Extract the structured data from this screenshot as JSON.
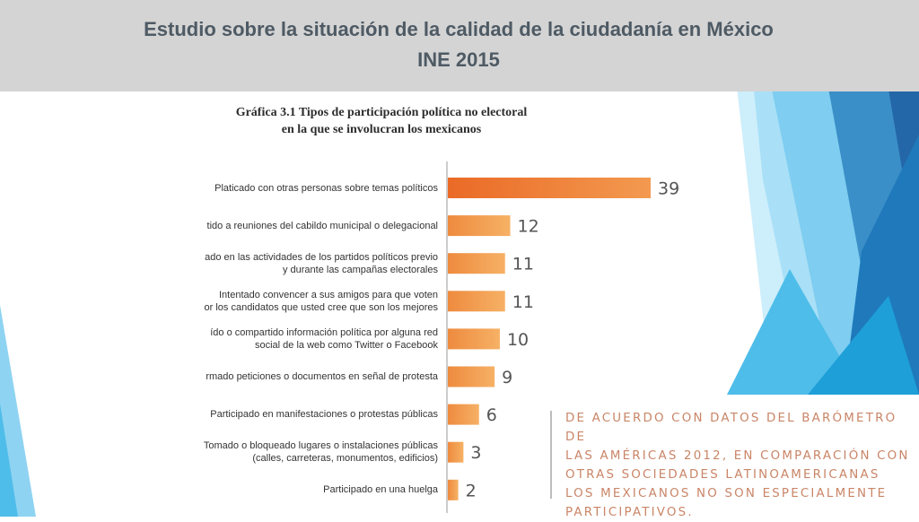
{
  "header": {
    "title_line1": "Estudio sobre la situación de la calidad de la ciudadanía en México",
    "title_line2": "INE 2015"
  },
  "chart_data": {
    "type": "bar",
    "orientation": "horizontal",
    "title_line1": "Gráfica 3.1 Tipos de participación política no electoral",
    "title_line2": "en la que se involucran los mexicanos",
    "categories": [
      [
        "Platicado con otras personas sobre temas políticos"
      ],
      [
        "tido a reuniones del cabildo municipal o delegacional"
      ],
      [
        "ado en las actividades de los partidos políticos previo",
        "y durante las campañas electorales"
      ],
      [
        "Intentado convencer a sus amigos para que voten",
        "or los candidatos que usted cree que son los mejores"
      ],
      [
        "ído o compartido información política por alguna red",
        "social de la web como Twitter o Facebook"
      ],
      [
        "rmado peticiones o documentos en señal de protesta"
      ],
      [
        "Participado en manifestaciones o protestas públicas"
      ],
      [
        "Tomado o bloqueado lugares o instalaciones públicas",
        "(calles, carreteras, monumentos, edificios)"
      ],
      [
        "Participado en una huelga"
      ]
    ],
    "values": [
      39,
      12,
      11,
      11,
      10,
      9,
      6,
      3,
      2
    ],
    "value_labels": [
      "39",
      "12",
      "11",
      "11",
      "10",
      "9",
      "6",
      "3",
      "2"
    ],
    "xlim": [
      0,
      40
    ],
    "grid": false,
    "colors": {
      "highlight": "#ec7030",
      "bar_light": "#f6b165",
      "bar_dark": "#ee8b3f"
    }
  },
  "callout": {
    "lines": [
      "DE ACUERDO CON DATOS DEL BARÓMETRO DE",
      "LAS AMÉRICAS 2012, EN COMPARACIÓN CON",
      "OTRAS SOCIEDADES LATINOAMERICANAS",
      "LOS MEXICANOS NO SON ESPECIALMENTE",
      "PARTICIPATIVOS."
    ]
  },
  "theme": {
    "header_bg": "#d4d4d4",
    "title_color": "#4e5a64",
    "callout_color": "#c98567",
    "deco_blue_dark": "#2467a8",
    "deco_blue_mid": "#1e9fd8",
    "deco_blue_light": "#8fd3f2"
  }
}
